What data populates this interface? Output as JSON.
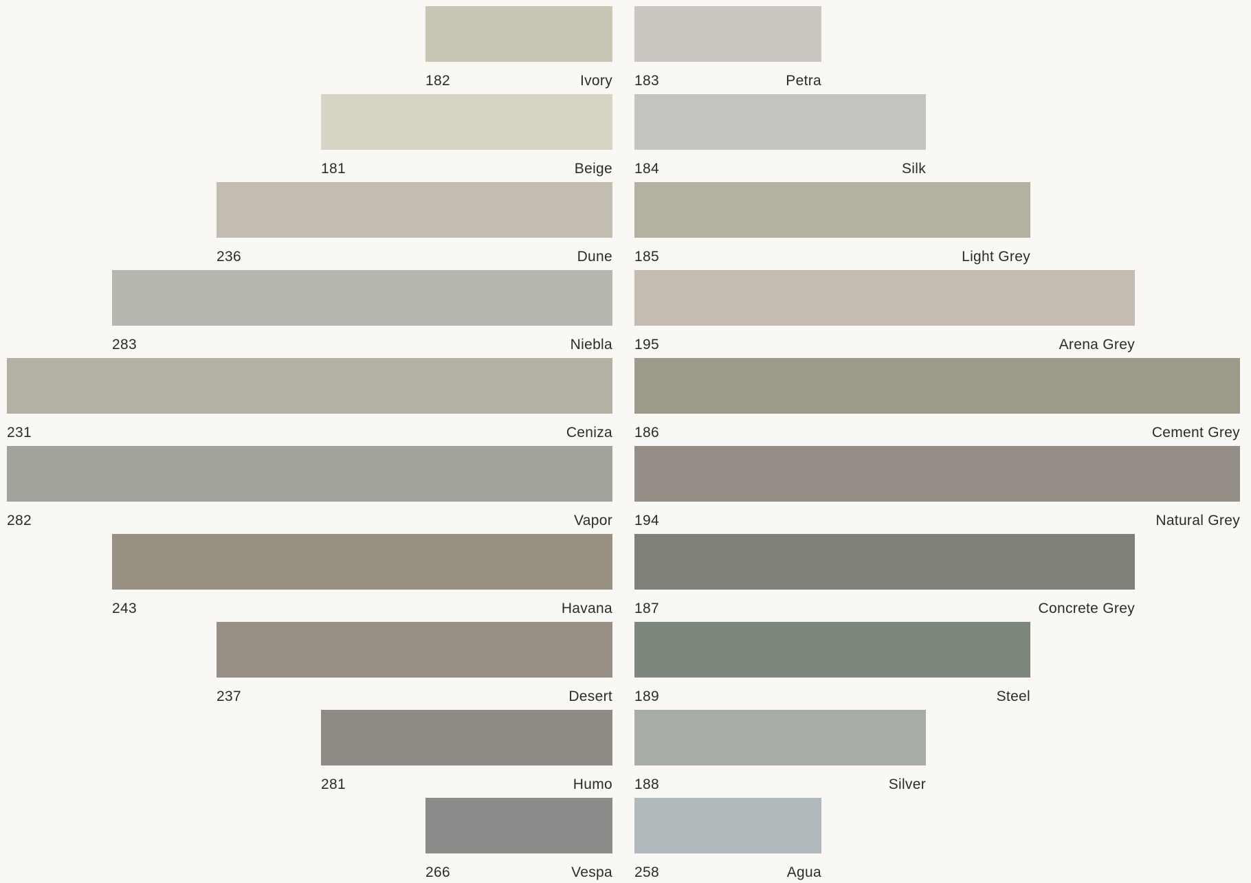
{
  "palette": {
    "left": [
      {
        "code": "182",
        "name": "Ivory",
        "color": "#c9c7b4"
      },
      {
        "code": "181",
        "name": "Beige",
        "color": "#d7d4c5"
      },
      {
        "code": "236",
        "name": "Dune",
        "color": "#c3bcb0"
      },
      {
        "code": "283",
        "name": "Niebla",
        "color": "#b6b7ae"
      },
      {
        "code": "231",
        "name": "Ceniza",
        "color": "#b2b1a4"
      },
      {
        "code": "282",
        "name": "Vapor",
        "color": "#a2a39b"
      },
      {
        "code": "243",
        "name": "Havana",
        "color": "#999284"
      },
      {
        "code": "237",
        "name": "Desert",
        "color": "#978f85"
      },
      {
        "code": "281",
        "name": "Humo",
        "color": "#8d8b84"
      },
      {
        "code": "266",
        "name": "Vespa",
        "color": "#8a8c89"
      }
    ],
    "right": [
      {
        "code": "183",
        "name": "Petra",
        "color": "#c8c6bf"
      },
      {
        "code": "184",
        "name": "Silk",
        "color": "#c3c5bf"
      },
      {
        "code": "185",
        "name": "Light Grey",
        "color": "#b3b1a1"
      },
      {
        "code": "195",
        "name": "Arena Grey",
        "color": "#c4bbb1"
      },
      {
        "code": "186",
        "name": "Cement Grey",
        "color": "#9c9a89"
      },
      {
        "code": "194",
        "name": "Natural Grey",
        "color": "#948e86"
      },
      {
        "code": "187",
        "name": "Concrete Grey",
        "color": "#808079"
      },
      {
        "code": "189",
        "name": "Steel",
        "color": "#7e877c"
      },
      {
        "code": "188",
        "name": "Silver",
        "color": "#a7ada6"
      },
      {
        "code": "258",
        "name": "Agua",
        "color": "#b2b9bc"
      }
    ]
  }
}
